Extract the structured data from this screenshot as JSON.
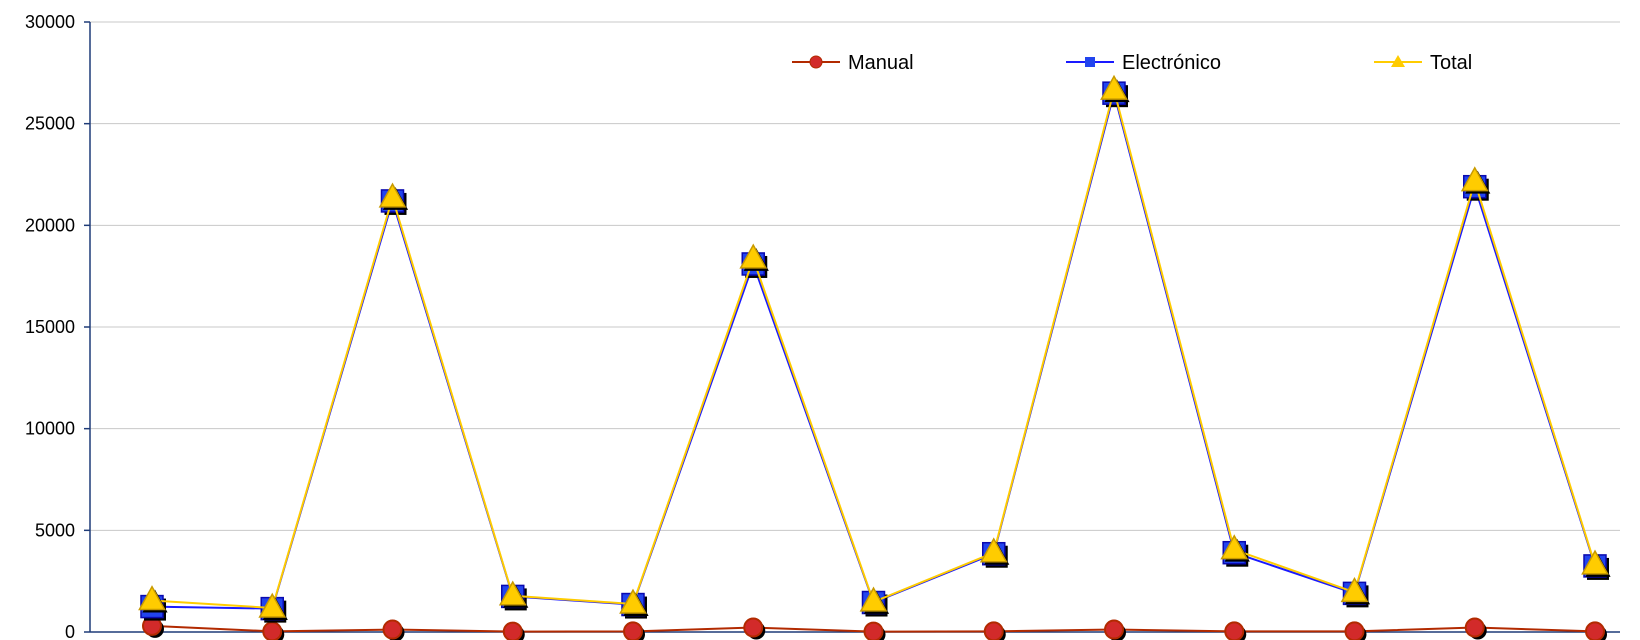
{
  "chart_data": {
    "type": "line",
    "title": "",
    "xlabel": "",
    "ylabel": "",
    "ylim": [
      0,
      30000
    ],
    "y_ticks": [
      0,
      5000,
      10000,
      15000,
      20000,
      25000,
      30000
    ],
    "y_tick_labels": [
      "0",
      "5000",
      "10000",
      "15000",
      "20000",
      "25000",
      "30000"
    ],
    "grid": true,
    "legend_position": "top-right",
    "series": [
      {
        "name": "Manual",
        "color": "#b22a00",
        "marker": "circle",
        "marker_fill": "#d22a2a",
        "values": [
          300,
          30,
          120,
          20,
          30,
          220,
          20,
          30,
          120,
          30,
          30,
          220,
          30
        ]
      },
      {
        "name": "Electrónico",
        "color": "#1a1aff",
        "marker": "square",
        "marker_fill": "#2244ee",
        "values": [
          1250,
          1150,
          21200,
          1750,
          1350,
          18100,
          1450,
          3850,
          26500,
          3900,
          1900,
          21900,
          3250
        ]
      },
      {
        "name": "Total",
        "color": "#ffcc00",
        "marker": "triangle",
        "marker_fill": "#ffcc00",
        "values": [
          1550,
          1180,
          21350,
          1780,
          1380,
          18350,
          1480,
          3900,
          26650,
          4050,
          1950,
          22150,
          3300
        ]
      }
    ]
  }
}
